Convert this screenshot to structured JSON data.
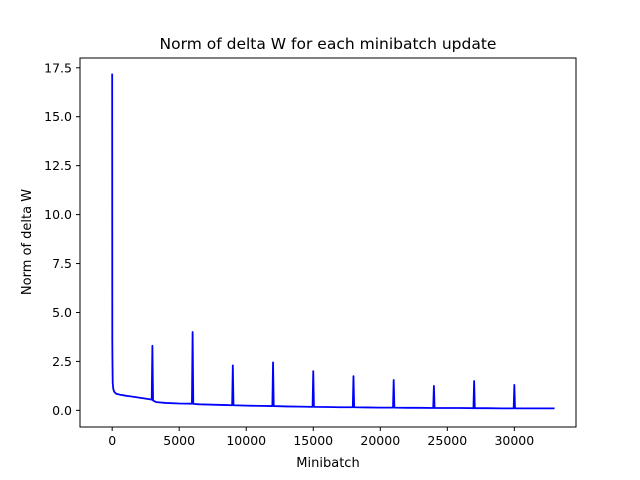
{
  "chart_data": {
    "type": "line",
    "title": "Norm of delta W for each minibatch update",
    "xlabel": "Minibatch",
    "ylabel": "Norm of delta W",
    "xlim": [
      -2400,
      34600
    ],
    "ylim": [
      -0.85,
      18.0
    ],
    "x_ticks": [
      0,
      5000,
      10000,
      15000,
      20000,
      25000,
      30000
    ],
    "x_tick_labels": [
      "0",
      "5000",
      "10000",
      "15000",
      "20000",
      "25000",
      "30000"
    ],
    "y_ticks": [
      0.0,
      2.5,
      5.0,
      7.5,
      10.0,
      12.5,
      15.0,
      17.5
    ],
    "y_tick_labels": [
      "0.0",
      "2.5",
      "5.0",
      "7.5",
      "10.0",
      "12.5",
      "15.0",
      "17.5"
    ],
    "grid": false,
    "series": [
      {
        "color": "#0000ff",
        "x": [
          0,
          10,
          20,
          40,
          80,
          150,
          300,
          600,
          1000,
          1500,
          2000,
          2500,
          2950,
          3000,
          3050,
          3300,
          4000,
          5000,
          5950,
          6000,
          6050,
          6500,
          7500,
          8500,
          8950,
          9000,
          9050,
          10000,
          11000,
          11950,
          12000,
          12050,
          13000,
          14000,
          14950,
          15000,
          15050,
          16000,
          17000,
          17950,
          18000,
          18050,
          19000,
          20000,
          20950,
          21000,
          21050,
          22000,
          23000,
          23950,
          24000,
          24050,
          25000,
          26000,
          26950,
          27000,
          27050,
          28000,
          29000,
          29950,
          30000,
          30050,
          31000,
          32000,
          33000
        ],
        "values": [
          17.2,
          3.6,
          2.6,
          1.4,
          1.1,
          0.95,
          0.85,
          0.8,
          0.75,
          0.7,
          0.65,
          0.6,
          0.55,
          3.3,
          0.5,
          0.42,
          0.38,
          0.35,
          0.34,
          4.0,
          0.33,
          0.31,
          0.29,
          0.27,
          0.26,
          2.3,
          0.26,
          0.24,
          0.23,
          0.22,
          2.45,
          0.22,
          0.2,
          0.19,
          0.18,
          2.0,
          0.18,
          0.17,
          0.16,
          0.16,
          1.75,
          0.16,
          0.15,
          0.14,
          0.14,
          1.55,
          0.14,
          0.13,
          0.13,
          0.12,
          1.25,
          0.12,
          0.12,
          0.12,
          0.11,
          1.5,
          0.11,
          0.11,
          0.1,
          0.1,
          1.3,
          0.1,
          0.1,
          0.1,
          0.1
        ]
      }
    ]
  }
}
